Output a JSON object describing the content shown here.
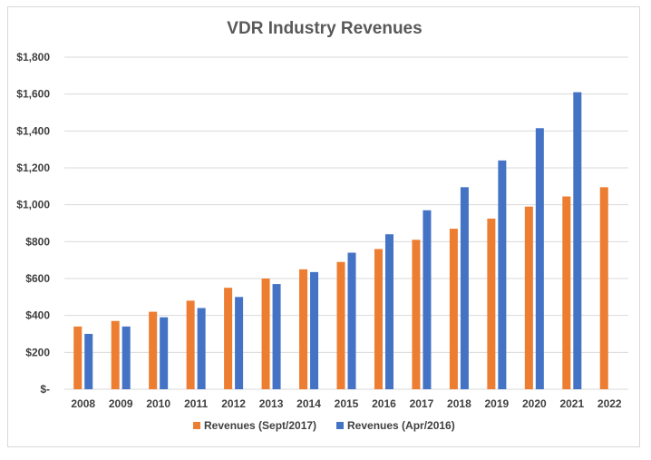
{
  "chart_data": {
    "type": "bar",
    "title": "VDR Industry Revenues",
    "xlabel": "",
    "ylabel": "",
    "categories": [
      "2008",
      "2009",
      "2010",
      "2011",
      "2012",
      "2013",
      "2014",
      "2015",
      "2016",
      "2017",
      "2018",
      "2019",
      "2020",
      "2021",
      "2022"
    ],
    "series": [
      {
        "name": "Revenues (Sept/2017)",
        "color": "#ed7d31",
        "values": [
          340,
          370,
          420,
          480,
          550,
          600,
          650,
          690,
          760,
          810,
          870,
          925,
          990,
          1045,
          1095
        ]
      },
      {
        "name": "Revenues (Apr/2016)",
        "color": "#4472c4",
        "values": [
          300,
          340,
          390,
          440,
          500,
          570,
          635,
          740,
          840,
          970,
          1095,
          1240,
          1415,
          1610,
          null
        ]
      }
    ],
    "ylim": [
      0,
      1800
    ],
    "yticks": [
      0,
      200,
      400,
      600,
      800,
      1000,
      1200,
      1400,
      1600,
      1800
    ],
    "ytick_labels": [
      "$-",
      "$200",
      "$400",
      "$600",
      "$800",
      "$1,000",
      "$1,200",
      "$1,400",
      "$1,600",
      "$1,800"
    ],
    "grid": true,
    "legend_position": "bottom"
  }
}
